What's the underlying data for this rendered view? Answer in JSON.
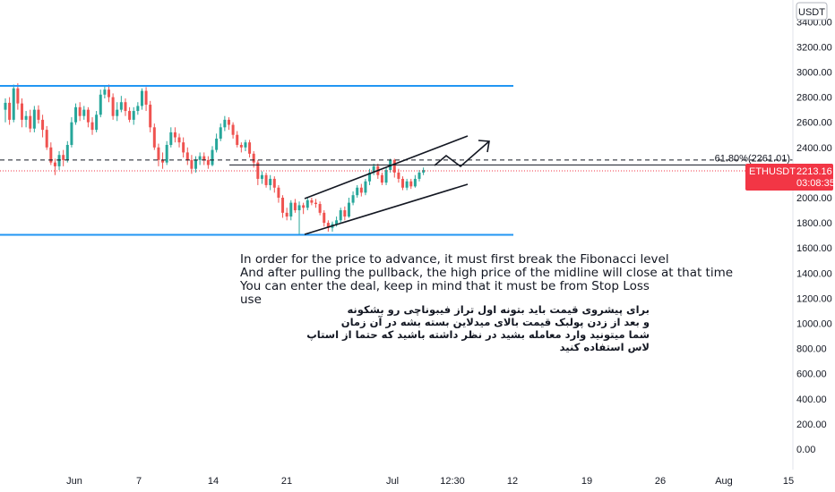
{
  "chart_data": {
    "type": "candlestick",
    "symbol": "ETHUSDT",
    "currency": "USDT",
    "y_axis": {
      "ticks": [
        "3400.00",
        "3200.00",
        "3000.00",
        "2800.00",
        "2600.00",
        "2400.00",
        "2200.00",
        "2000.00",
        "1800.00",
        "1600.00",
        "1400.00",
        "1200.00",
        "1000.00",
        "800.00",
        "600.00",
        "400.00",
        "200.00",
        "0.00"
      ],
      "range": [
        -100,
        3580
      ]
    },
    "x_axis": {
      "ticks": [
        "Jun",
        "7",
        "14",
        "21",
        "Jul",
        "12:30",
        "12",
        "19",
        "26",
        "Aug",
        "15"
      ]
    },
    "last_price": {
      "label": "ETHUSDT",
      "value": "2213.16",
      "countdown": "03:08:35",
      "color": "#f23645"
    },
    "fibonacci": {
      "label": "61.80%(2261.01)",
      "level": 2261.01
    },
    "channel": {
      "upper": 2890,
      "lower": 1705,
      "color": "#2196f3"
    },
    "candles": [
      [
        2700,
        2755,
        2600,
        2790
      ],
      [
        2755,
        2620,
        2580,
        2800
      ],
      [
        2620,
        2870,
        2600,
        2900
      ],
      [
        2870,
        2750,
        2700,
        2910
      ],
      [
        2750,
        2620,
        2560,
        2790
      ],
      [
        2620,
        2650,
        2560,
        2690
      ],
      [
        2650,
        2550,
        2520,
        2700
      ],
      [
        2550,
        2700,
        2520,
        2730
      ],
      [
        2700,
        2620,
        2590,
        2735
      ],
      [
        2620,
        2540,
        2480,
        2660
      ],
      [
        2540,
        2400,
        2380,
        2570
      ],
      [
        2400,
        2280,
        2260,
        2440
      ],
      [
        2280,
        2250,
        2180,
        2310
      ],
      [
        2250,
        2340,
        2220,
        2370
      ],
      [
        2340,
        2300,
        2250,
        2380
      ],
      [
        2300,
        2420,
        2280,
        2450
      ],
      [
        2420,
        2600,
        2400,
        2640
      ],
      [
        2600,
        2720,
        2580,
        2750
      ],
      [
        2720,
        2650,
        2610,
        2760
      ],
      [
        2650,
        2700,
        2620,
        2730
      ],
      [
        2700,
        2600,
        2560,
        2720
      ],
      [
        2600,
        2540,
        2500,
        2640
      ],
      [
        2540,
        2660,
        2520,
        2690
      ],
      [
        2660,
        2820,
        2640,
        2860
      ],
      [
        2820,
        2860,
        2790,
        2890
      ],
      [
        2860,
        2800,
        2760,
        2900
      ],
      [
        2800,
        2650,
        2620,
        2830
      ],
      [
        2650,
        2700,
        2610,
        2760
      ],
      [
        2700,
        2760,
        2680,
        2810
      ],
      [
        2760,
        2690,
        2650,
        2790
      ],
      [
        2690,
        2620,
        2600,
        2720
      ],
      [
        2620,
        2690,
        2580,
        2720
      ],
      [
        2690,
        2730,
        2660,
        2760
      ],
      [
        2730,
        2850,
        2700,
        2870
      ],
      [
        2850,
        2740,
        2690,
        2880
      ],
      [
        2740,
        2560,
        2520,
        2770
      ],
      [
        2560,
        2400,
        2380,
        2590
      ],
      [
        2400,
        2300,
        2250,
        2430
      ],
      [
        2300,
        2280,
        2230,
        2360
      ],
      [
        2280,
        2420,
        2260,
        2450
      ],
      [
        2420,
        2520,
        2400,
        2560
      ],
      [
        2520,
        2480,
        2440,
        2560
      ],
      [
        2480,
        2440,
        2400,
        2510
      ],
      [
        2440,
        2360,
        2320,
        2480
      ],
      [
        2360,
        2300,
        2260,
        2400
      ],
      [
        2300,
        2230,
        2190,
        2340
      ],
      [
        2230,
        2300,
        2200,
        2330
      ],
      [
        2300,
        2330,
        2260,
        2360
      ],
      [
        2330,
        2300,
        2260,
        2360
      ],
      [
        2300,
        2260,
        2230,
        2330
      ],
      [
        2260,
        2380,
        2250,
        2410
      ],
      [
        2380,
        2470,
        2360,
        2510
      ],
      [
        2470,
        2560,
        2450,
        2590
      ],
      [
        2560,
        2620,
        2530,
        2650
      ],
      [
        2620,
        2580,
        2540,
        2640
      ],
      [
        2580,
        2500,
        2470,
        2600
      ],
      [
        2500,
        2420,
        2400,
        2530
      ],
      [
        2420,
        2400,
        2360,
        2440
      ],
      [
        2400,
        2440,
        2370,
        2460
      ],
      [
        2440,
        2350,
        2320,
        2460
      ],
      [
        2350,
        2280,
        2240,
        2370
      ],
      [
        2280,
        2150,
        2100,
        2300
      ],
      [
        2150,
        2180,
        2110,
        2210
      ],
      [
        2180,
        2100,
        2080,
        2200
      ],
      [
        2100,
        2150,
        2060,
        2180
      ],
      [
        2150,
        2080,
        2040,
        2170
      ],
      [
        2080,
        2000,
        1960,
        2100
      ],
      [
        2000,
        1880,
        1840,
        2020
      ],
      [
        1880,
        1850,
        1820,
        1920
      ],
      [
        1850,
        1960,
        1820,
        1980
      ],
      [
        1960,
        1900,
        1880,
        1990
      ],
      [
        1900,
        1940,
        1700,
        1970
      ],
      [
        1940,
        1920,
        1870,
        1960
      ],
      [
        1920,
        1980,
        1900,
        2000
      ],
      [
        1980,
        1960,
        1940,
        2000
      ],
      [
        1960,
        1950,
        1920,
        1990
      ],
      [
        1950,
        1880,
        1860,
        1970
      ],
      [
        1880,
        1800,
        1770,
        1900
      ],
      [
        1800,
        1760,
        1730,
        1820
      ],
      [
        1760,
        1790,
        1730,
        1810
      ],
      [
        1790,
        1820,
        1770,
        1850
      ],
      [
        1820,
        1900,
        1800,
        1920
      ],
      [
        1900,
        1850,
        1820,
        1930
      ],
      [
        1850,
        1960,
        1840,
        2000
      ],
      [
        1960,
        2020,
        1940,
        2050
      ],
      [
        2020,
        2080,
        2000,
        2100
      ],
      [
        2080,
        2040,
        2010,
        2110
      ],
      [
        2040,
        2130,
        2020,
        2150
      ],
      [
        2130,
        2200,
        2100,
        2230
      ],
      [
        2200,
        2250,
        2180,
        2270
      ],
      [
        2250,
        2180,
        2150,
        2270
      ],
      [
        2180,
        2120,
        2100,
        2200
      ],
      [
        2120,
        2220,
        2100,
        2240
      ],
      [
        2220,
        2300,
        2200,
        2310
      ],
      [
        2300,
        2200,
        2160,
        2310
      ],
      [
        2200,
        2150,
        2120,
        2230
      ],
      [
        2150,
        2080,
        2060,
        2170
      ],
      [
        2080,
        2130,
        2060,
        2150
      ],
      [
        2130,
        2090,
        2070,
        2150
      ],
      [
        2090,
        2150,
        2080,
        2180
      ],
      [
        2150,
        2200,
        2130,
        2220
      ],
      [
        2200,
        2220,
        2180,
        2240
      ]
    ]
  },
  "notes": {
    "en": [
      "In order for the price to advance, it must first break the Fibonacci level",
      "And after pulling the pullback, the high price of the midline will close at that time",
      "You can enter the deal, keep in mind that it must be from Stop Loss",
      "use"
    ],
    "fa": [
      "برای پیشروی قیمت باید بتونه اول تراز فیبوناچی رو بشکونه",
      "و بعد از زدن پولبک قیمت بالای میدلاین بسته بشه در آن زمان",
      "شما میتونید وارد معامله بشید در نظر داشته باشید که حتما از استاپ",
      "لاس استفاده کنید"
    ]
  }
}
